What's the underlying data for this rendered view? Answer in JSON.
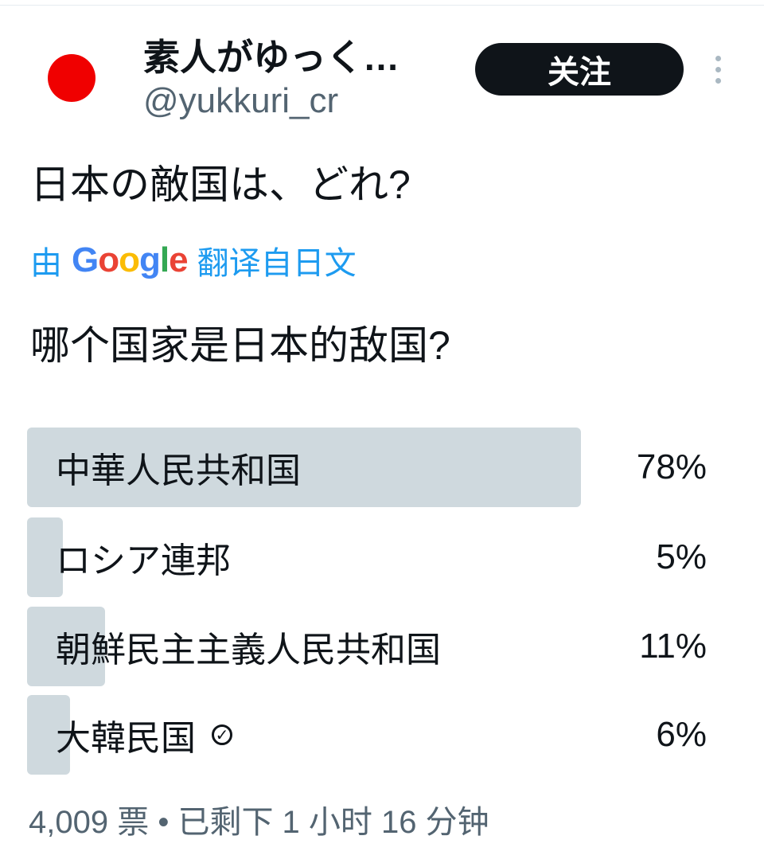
{
  "user": {
    "name": "素人がゆっく…",
    "handle": "@yukkuri_cr",
    "avatar_color": "#f00000"
  },
  "follow_label": "关注",
  "question": "日本の敵国は、どれ?",
  "translation": {
    "prefix": "由",
    "brand": "Google",
    "suffix": "翻译自日文",
    "text": "哪个国家是日本的敌国?"
  },
  "poll": {
    "options": [
      {
        "label": "中華人民共和国",
        "percent": 78,
        "percent_label": "78%"
      },
      {
        "label": "ロシア連邦",
        "percent": 5,
        "percent_label": "5%"
      },
      {
        "label": "朝鮮民主主義人民共和国",
        "percent": 11,
        "percent_label": "11%"
      },
      {
        "label": "大韓民国",
        "percent": 6,
        "percent_label": "6%",
        "selected": true
      }
    ],
    "bar_color": "#cfd9de",
    "footer": "4,009 票 • 已剩下 1 小时 16 分钟"
  }
}
